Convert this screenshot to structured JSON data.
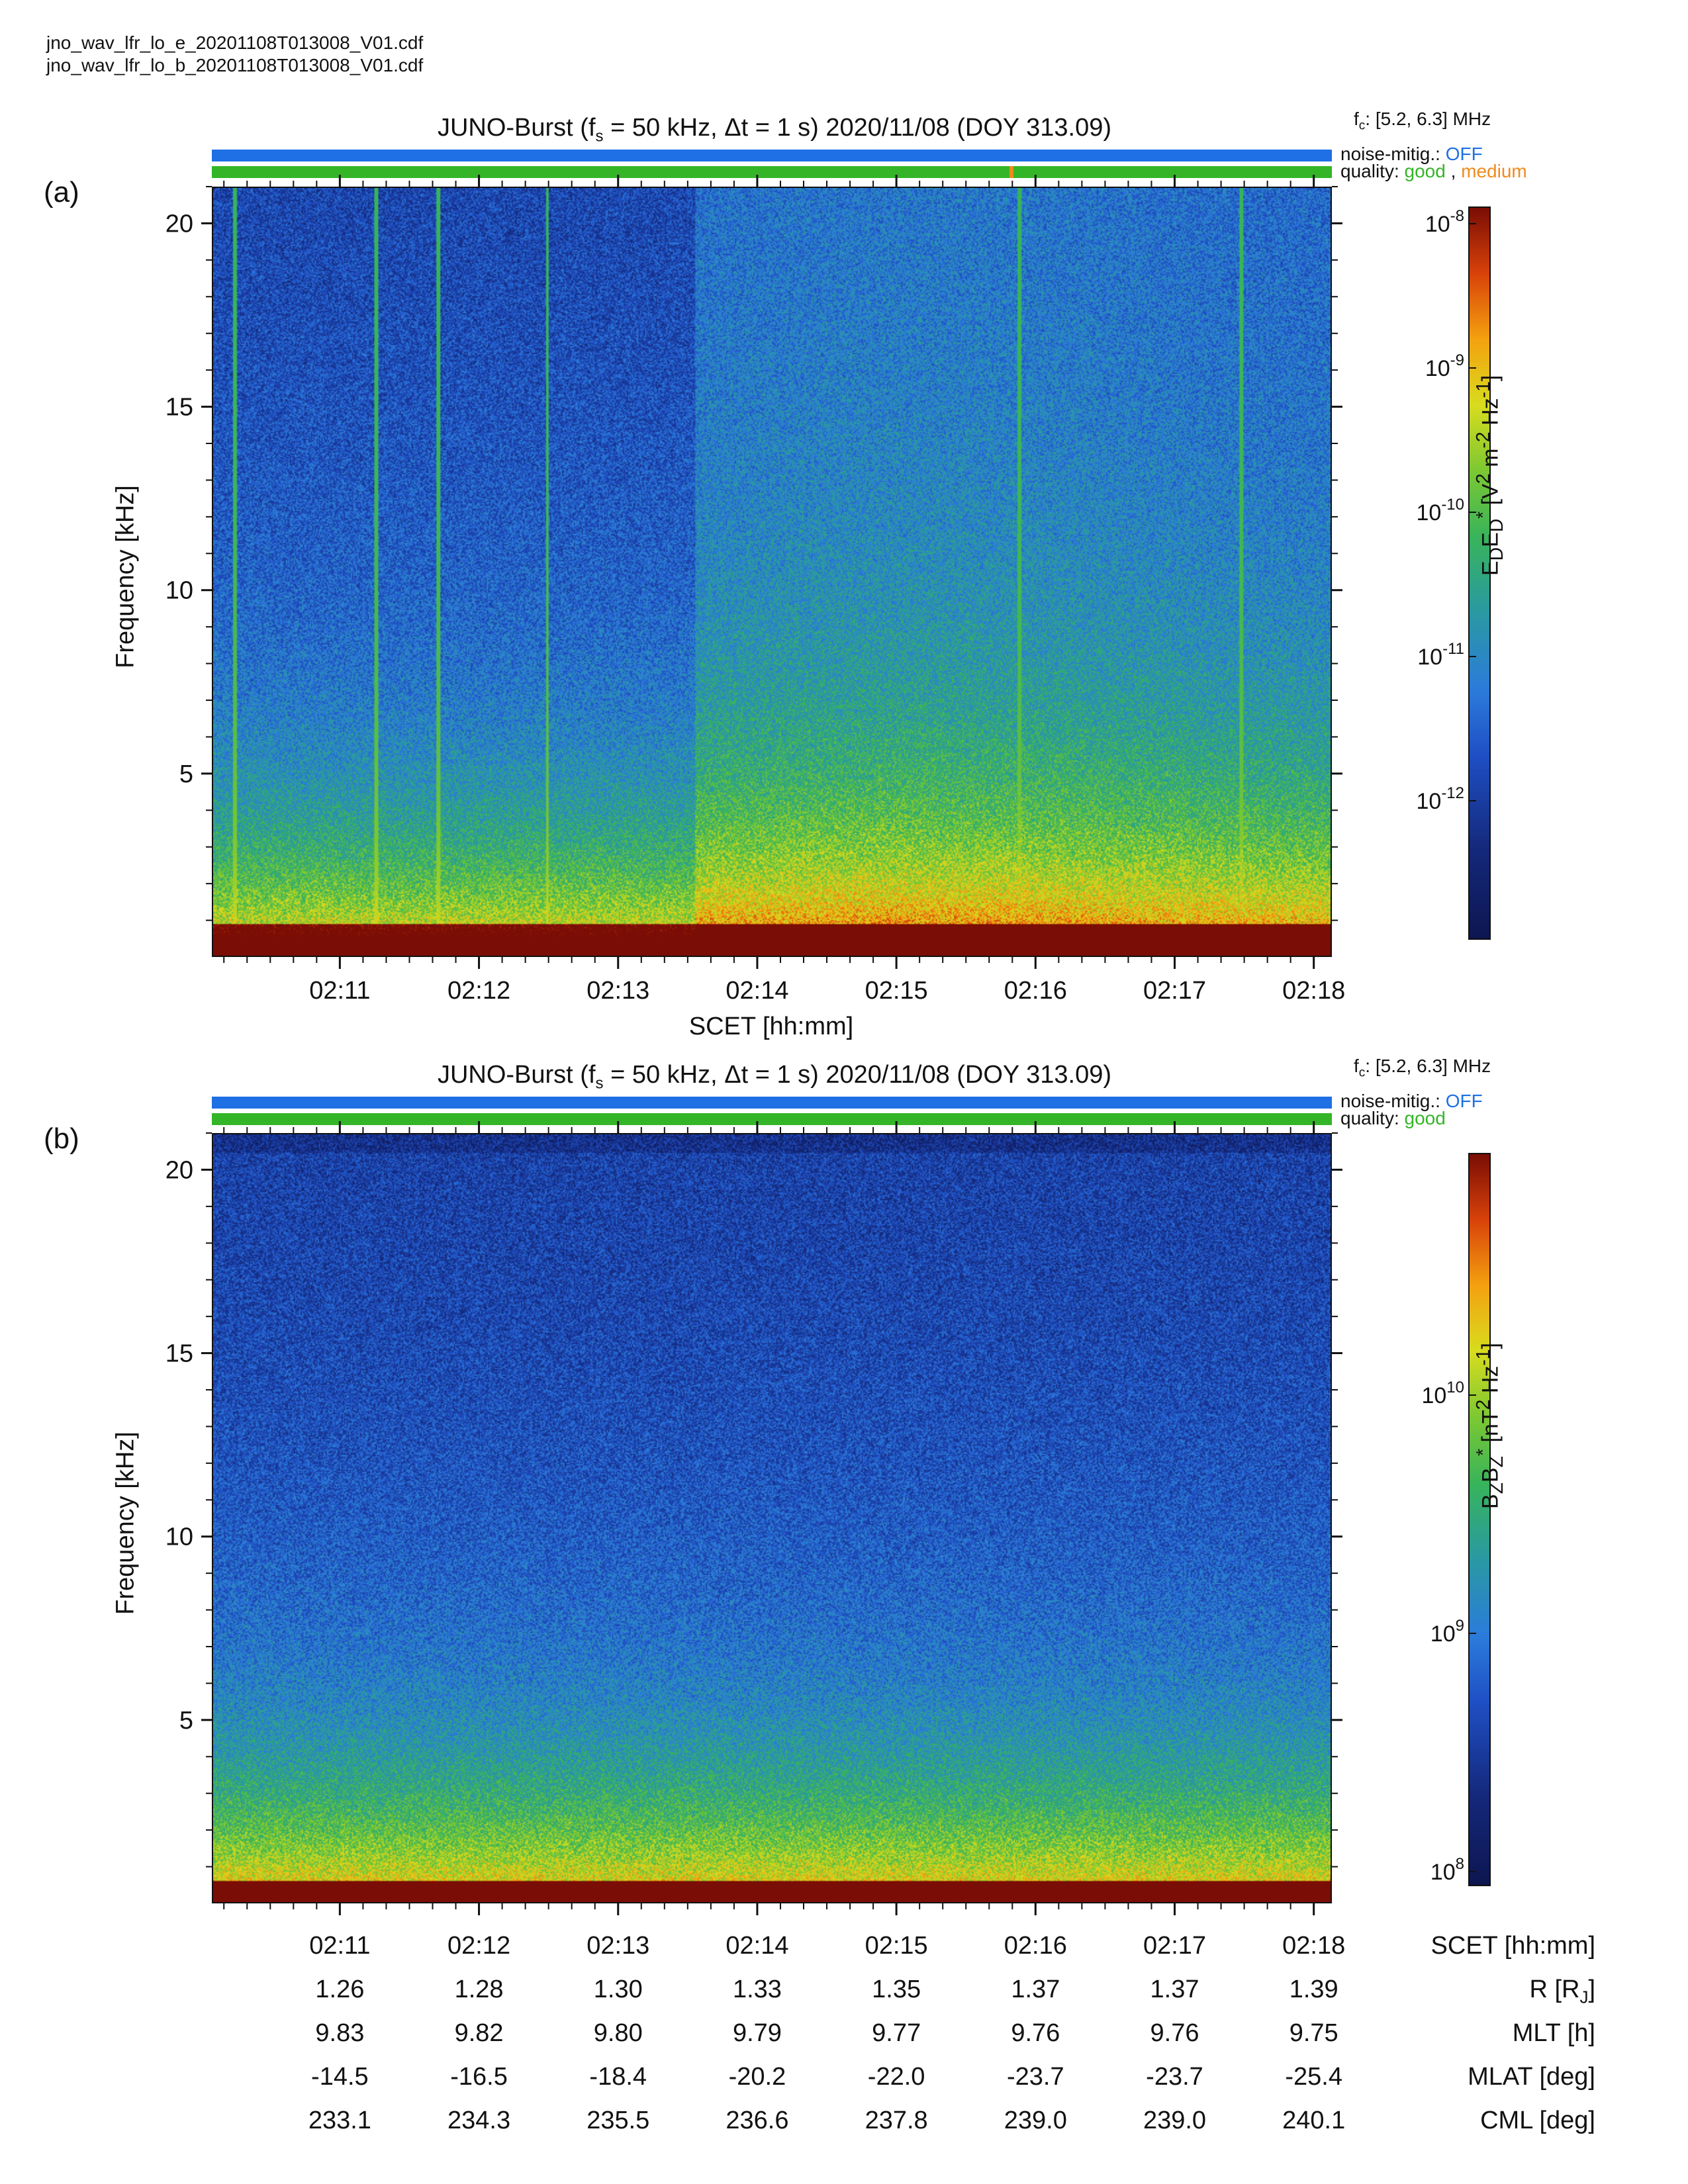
{
  "files": [
    "jno_wav_lfr_lo_e_20201108T013008_V01.cdf",
    "jno_wav_lfr_lo_b_20201108T013008_V01.cdf"
  ],
  "panels": [
    {
      "label": "(a)",
      "title": "JUNO-Burst (f",
      "title_sub": "s",
      "title_rest": " = 50 kHz, Δt = 1 s)  2020/11/08 (DOY 313.09)",
      "fc_label": "f",
      "fc_sub": "c",
      "fc_value": ": [5.2, 6.3] MHz",
      "noise_label": "noise-mitig.: ",
      "noise_value": "OFF",
      "quality_label": "quality: ",
      "quality_good": "good",
      "quality_sep": " , ",
      "quality_medium": "medium",
      "ylabel": "Frequency [kHz]",
      "xlabel": "SCET [hh:mm]",
      "cbar_label_html": "E<sub>D</sub>E<sub>D</sub><sup>*</sup> [V<sup>2</sup> m<sup>-2</sup> Hz<sup>-1</sup>]",
      "cbar_ticks": [
        "10-8",
        "10-9",
        "10-10",
        "10-11",
        "10-12"
      ]
    },
    {
      "label": "(b)",
      "title": "JUNO-Burst (f",
      "title_sub": "s",
      "title_rest": " = 50 kHz, Δt = 1 s)  2020/11/08 (DOY 313.09)",
      "fc_label": "f",
      "fc_sub": "c",
      "fc_value": ": [5.2, 6.3] MHz",
      "noise_label": "noise-mitig.: ",
      "noise_value": "OFF",
      "quality_label": "quality: ",
      "quality_good": "good",
      "ylabel": "Frequency [kHz]",
      "cbar_label_html": "B<sub>Z</sub>B<sub>Z</sub><sup>*</sup> [nT<sup>2</sup> Hz<sup>-1</sup>]",
      "cbar_ticks": [
        "1010",
        "109",
        "108"
      ]
    }
  ],
  "ephemeris": {
    "rows": [
      {
        "name": "SCET [hh:mm]",
        "values": [
          "02:11",
          "02:12",
          "02:13",
          "02:14",
          "02:15",
          "02:16",
          "02:17",
          "02:18"
        ]
      },
      {
        "name": "R [R",
        "sub": "J",
        "name_end": "]",
        "values": [
          "1.26",
          "1.28",
          "1.30",
          "1.33",
          "1.35",
          "1.37",
          "1.37",
          "1.39"
        ]
      },
      {
        "name": "MLT [h]",
        "values": [
          "9.83",
          "9.82",
          "9.80",
          "9.79",
          "9.77",
          "9.76",
          "9.76",
          "9.75"
        ]
      },
      {
        "name": "MLAT [deg]",
        "values": [
          "-14.5",
          "-16.5",
          "-18.4",
          "-20.2",
          "-22.0",
          "-23.7",
          "-23.7",
          "-25.4"
        ]
      },
      {
        "name": "CML [deg]",
        "values": [
          "233.1",
          "234.3",
          "235.5",
          "236.6",
          "237.8",
          "239.0",
          "239.0",
          "240.1"
        ]
      }
    ]
  },
  "colors": {
    "noise_off": "#1f6fe5",
    "quality_good": "#33b527",
    "quality_medium": "#f08a1c"
  },
  "chart_data": [
    {
      "type": "heatmap",
      "title": "JUNO-Burst (fs = 50 kHz, Δt = 1 s) 2020/11/08 (DOY 313.09)",
      "xlabel": "SCET [hh:mm]",
      "ylabel": "Frequency [kHz]",
      "x_ticks": [
        "02:11",
        "02:12",
        "02:13",
        "02:14",
        "02:15",
        "02:16",
        "02:17",
        "02:18"
      ],
      "y_ticks": [
        5,
        10,
        15,
        20
      ],
      "ylim": [
        0,
        21
      ],
      "colorbar": {
        "label": "EDED* [V2 m-2 Hz-1]",
        "scale": "log",
        "range": [
          1e-13,
          1e-08
        ]
      },
      "vertical_events": [
        {
          "time": "02:10:14"
        },
        {
          "time": "02:11:15"
        },
        {
          "time": "02:11:42"
        },
        {
          "time": "02:12:29"
        },
        {
          "time": "02:15:53"
        },
        {
          "time": "02:17:29"
        }
      ],
      "background_increase_after": "02:13:33"
    },
    {
      "type": "heatmap",
      "title": "JUNO-Burst (fs = 50 kHz, Δt = 1 s) 2020/11/08 (DOY 313.09)",
      "ylabel": "Frequency [kHz]",
      "x_ticks": [
        "02:11",
        "02:12",
        "02:13",
        "02:14",
        "02:15",
        "02:16",
        "02:17",
        "02:18"
      ],
      "y_ticks": [
        5,
        10,
        15,
        20
      ],
      "ylim": [
        0,
        21
      ],
      "colorbar": {
        "label": "BZBZ* [nT2 Hz-1]",
        "scale": "log",
        "range": [
          70000000.0,
          70000000000.0
        ]
      }
    }
  ]
}
